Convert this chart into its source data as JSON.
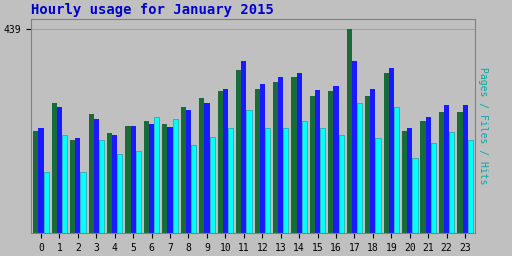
{
  "title": "Hourly usage for January 2015",
  "ylabel": "Pages / Files / Hits",
  "hours": [
    0,
    1,
    2,
    3,
    4,
    5,
    6,
    7,
    8,
    9,
    10,
    11,
    12,
    13,
    14,
    15,
    16,
    17,
    18,
    19,
    20,
    21,
    22,
    23
  ],
  "pages": [
    220,
    280,
    200,
    255,
    215,
    230,
    240,
    235,
    270,
    290,
    305,
    350,
    310,
    325,
    335,
    295,
    305,
    439,
    295,
    345,
    220,
    240,
    260,
    260
  ],
  "files": [
    225,
    270,
    205,
    245,
    210,
    230,
    235,
    228,
    265,
    280,
    310,
    370,
    320,
    335,
    345,
    308,
    315,
    370,
    310,
    355,
    225,
    250,
    275,
    275
  ],
  "hits": [
    130,
    210,
    130,
    200,
    170,
    175,
    250,
    245,
    188,
    207,
    225,
    265,
    225,
    225,
    240,
    225,
    210,
    280,
    205,
    270,
    160,
    193,
    218,
    200
  ],
  "color_pages": "#1a6b3a",
  "color_files": "#1a1aff",
  "color_hits": "#00ffff",
  "bg_color": "#c0c0c0",
  "plot_bg_color": "#c0c0c0",
  "ymax": 439,
  "title_color": "#0000cc",
  "ylabel_color": "#00aaaa",
  "grid_color": "#999999",
  "bar_width": 0.28,
  "title_fontsize": 10,
  "ylabel_fontsize": 7,
  "tick_fontsize": 7,
  "figwidth": 5.12,
  "figheight": 2.56,
  "dpi": 100
}
